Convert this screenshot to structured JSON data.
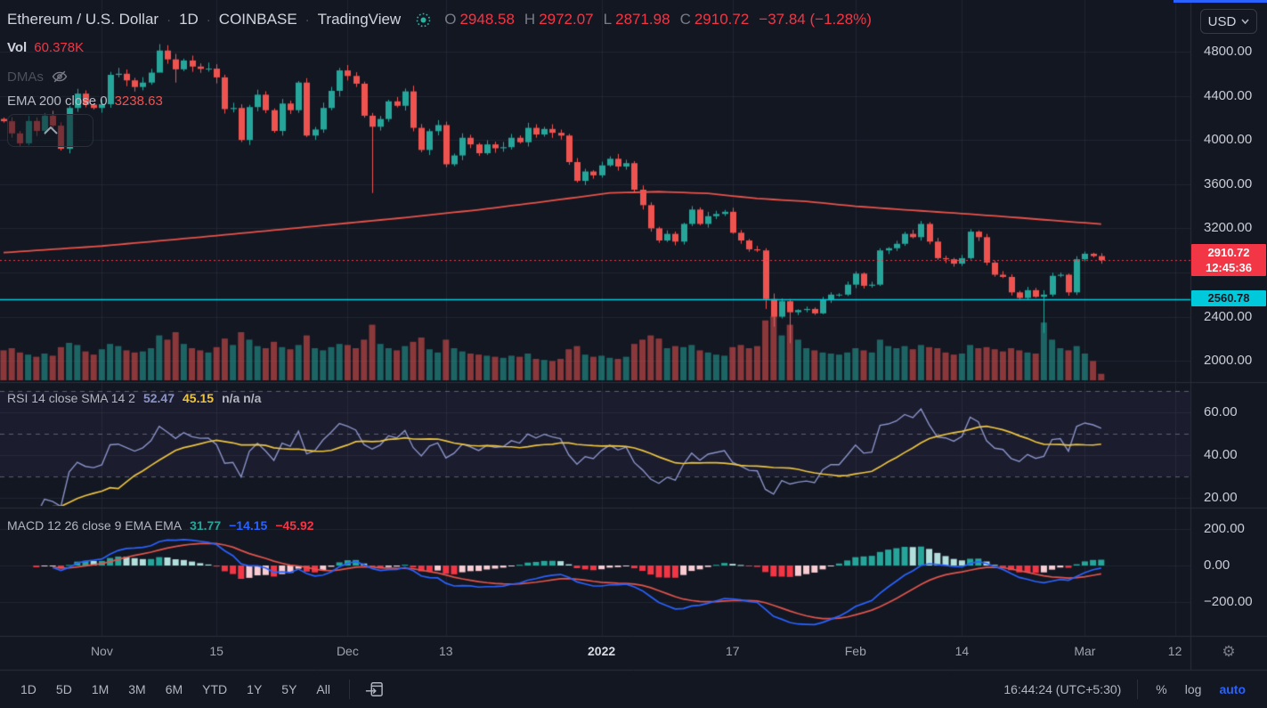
{
  "header": {
    "symbol": "Ethereum / U.S. Dollar",
    "sep": "·",
    "interval": "1D",
    "exchange": "COINBASE",
    "platform": "TradingView",
    "ohlc": {
      "o_label": "O",
      "o": "2948.58",
      "h_label": "H",
      "h": "2972.07",
      "l_label": "L",
      "l": "2871.98",
      "c_label": "C",
      "c": "2910.72",
      "change": "−37.84 (−1.28%)"
    }
  },
  "legend": {
    "vol_label": "Vol",
    "vol_value": "60.378K",
    "dmas_label": "DMAs",
    "ema_label": "EMA 200 close 0",
    "ema_value": "3238.63"
  },
  "rsi_legend": {
    "title": "RSI 14 close SMA 14 2",
    "rsi_value": "52.47",
    "ma_value": "45.15",
    "extra": "n/a n/a"
  },
  "macd_legend": {
    "title": "MACD 12 26 close 9 EMA EMA",
    "hist_value": "31.77",
    "macd_value": "−14.15",
    "signal_value": "−45.92"
  },
  "price_axis": {
    "currency": "USD",
    "last_price": "2910.72",
    "countdown": "12:45:36",
    "alert_price": "2560.78"
  },
  "toolbar": {
    "ranges": [
      "1D",
      "5D",
      "1M",
      "3M",
      "6M",
      "YTD",
      "1Y",
      "5Y",
      "All"
    ],
    "clock": "16:44:24 (UTC+5:30)",
    "percent_label": "%",
    "log_label": "log",
    "auto_label": "auto"
  },
  "colors": {
    "background": "#131722",
    "grid": "rgba(42,46,57,0.6)",
    "separator": "#2A2E39",
    "up": "#26A69A",
    "down": "#EF5350",
    "vol_up": "rgba(38,166,154,0.55)",
    "vol_down": "rgba(239,83,80,0.55)",
    "ema": "#E8524A",
    "last_price_line": "#F23645",
    "alert_line": "#00C9DB",
    "rsi_line": "#8A93C8",
    "rsi_ma": "#ECC440",
    "rsi_band_fill": "rgba(126,87,194,0.08)",
    "rsi_dash": "rgba(150,153,163,0.55)",
    "macd_line": "#2962FF",
    "macd_signal": "#E0544C",
    "hist_up": "#26A69A",
    "hist_up_fade": "#B2DFDB",
    "hist_down": "#F23645",
    "hist_down_fade": "#F8CCD2",
    "accent_blue": "#2962FF"
  },
  "chart_data": {
    "type": "candlestick",
    "title": "Ethereum / U.S. Dollar",
    "interval": "1D",
    "exchange": "COINBASE",
    "panes": [
      "price+volume",
      "RSI",
      "MACD"
    ],
    "price_ylim": [
      1950,
      4950
    ],
    "grid": true,
    "price_grid_values": [
      4800,
      4400,
      4000,
      3600,
      3200,
      2800,
      2400,
      2000
    ],
    "price_labels": [
      [
        4800,
        "4800.00"
      ],
      [
        4400,
        "4400.00"
      ],
      [
        4000,
        "4000.00"
      ],
      [
        3600,
        "3600.00"
      ],
      [
        3200,
        "3200.00"
      ],
      [
        2400,
        "2400.00"
      ],
      [
        2000,
        "2000.00"
      ]
    ],
    "last_price": 2910.72,
    "alert_price": 2560.78,
    "ohlc_current": {
      "open": 2948.58,
      "high": 2972.07,
      "low": 2871.98,
      "close": 2910.72,
      "change": -37.84,
      "change_pct": -1.28
    },
    "volume_current_k": 60.378,
    "ema200_current": 3238.63,
    "closes": [
      4170,
      4060,
      3970,
      4172,
      4082,
      4220,
      4130,
      3920,
      4290,
      4420,
      4320,
      4290,
      4324,
      4590,
      4600,
      4540,
      4480,
      4520,
      4610,
      4810,
      4730,
      4640,
      4720,
      4665,
      4644,
      4646,
      4567,
      4280,
      4290,
      4000,
      4298,
      4410,
      4270,
      4082,
      4330,
      4270,
      4520,
      4040,
      4095,
      4290,
      4445,
      4630,
      4580,
      4510,
      4220,
      4120,
      4190,
      4350,
      4310,
      4440,
      4110,
      3910,
      4080,
      4135,
      3780,
      3860,
      4020,
      3960,
      3880,
      3960,
      3925,
      3935,
      4020,
      3980,
      4110,
      4050,
      4100,
      4065,
      4040,
      3800,
      3630,
      3715,
      3680,
      3770,
      3830,
      3760,
      3790,
      3550,
      3410,
      3200,
      3090,
      3150,
      3080,
      3240,
      3370,
      3240,
      3310,
      3330,
      3350,
      3160,
      3090,
      3010,
      3000,
      2560,
      2400,
      2540,
      2440,
      2460,
      2470,
      2430,
      2550,
      2600,
      2600,
      2690,
      2790,
      2680,
      2690,
      3000,
      3020,
      3060,
      3150,
      3120,
      3240,
      3080,
      2930,
      2920,
      2880,
      2930,
      3170,
      3120,
      2890,
      2780,
      2760,
      2620,
      2570,
      2640,
      2580,
      2600,
      2770,
      2780,
      2620,
      2920,
      2970,
      2948.58,
      2910.72
    ],
    "volumes_k": [
      280,
      300,
      260,
      240,
      220,
      250,
      230,
      310,
      350,
      330,
      270,
      240,
      290,
      340,
      320,
      280,
      260,
      270,
      300,
      420,
      380,
      450,
      340,
      300,
      280,
      260,
      310,
      390,
      330,
      450,
      380,
      320,
      300,
      360,
      310,
      290,
      330,
      420,
      300,
      280,
      310,
      340,
      330,
      300,
      380,
      520,
      340,
      300,
      280,
      320,
      360,
      400,
      290,
      260,
      380,
      300,
      270,
      250,
      240,
      230,
      220,
      210,
      230,
      220,
      250,
      200,
      190,
      180,
      200,
      290,
      320,
      240,
      220,
      230,
      210,
      200,
      220,
      340,
      380,
      420,
      390,
      300,
      320,
      310,
      330,
      280,
      260,
      240,
      230,
      310,
      330,
      300,
      320,
      560,
      600,
      420,
      520,
      380,
      300,
      280,
      260,
      250,
      240,
      260,
      300,
      280,
      260,
      380,
      320,
      300,
      320,
      290,
      330,
      310,
      300,
      260,
      240,
      250,
      330,
      300,
      310,
      290,
      270,
      300,
      280,
      260,
      250,
      540,
      380,
      300,
      280,
      320,
      250,
      180,
      60.378
    ],
    "wick_overrides": {
      "19": [
        4868,
        4700
      ],
      "21": [
        4780,
        4520
      ],
      "45": [
        4245,
        3520
      ],
      "93": [
        3020,
        2470
      ],
      "94": [
        2610,
        2310
      ],
      "96": [
        2560,
        2160
      ],
      "127": [
        2640,
        2253
      ]
    },
    "ema200_anchors": [
      [
        0,
        2980
      ],
      [
        12,
        3040
      ],
      [
        24,
        3120
      ],
      [
        36,
        3205
      ],
      [
        48,
        3290
      ],
      [
        58,
        3368
      ],
      [
        66,
        3442
      ],
      [
        74,
        3520
      ],
      [
        80,
        3532
      ],
      [
        86,
        3516
      ],
      [
        92,
        3470
      ],
      [
        98,
        3444
      ],
      [
        104,
        3400
      ],
      [
        110,
        3368
      ],
      [
        117,
        3334
      ],
      [
        124,
        3296
      ],
      [
        129,
        3266
      ],
      [
        134,
        3239
      ]
    ],
    "time_ticks": [
      [
        "Nov",
        12
      ],
      [
        "15",
        26
      ],
      [
        "Dec",
        42
      ],
      [
        "13",
        54
      ],
      [
        "2022",
        73
      ],
      [
        "17",
        89
      ],
      [
        "Feb",
        104
      ],
      [
        "14",
        117
      ],
      [
        "Mar",
        132
      ],
      [
        "12",
        143
      ]
    ],
    "rsi": {
      "period": 14,
      "ma_period": 14,
      "bands": [
        70,
        50,
        30
      ],
      "axis_labels": [
        [
          60,
          "60.00"
        ],
        [
          40,
          "40.00"
        ],
        [
          20,
          "20.00"
        ]
      ],
      "current": 52.47,
      "ma_current": 45.15
    },
    "macd": {
      "fast": 12,
      "slow": 26,
      "signal": 9,
      "axis_labels": [
        [
          200,
          "200.00"
        ],
        [
          0,
          "0.00"
        ],
        [
          -200,
          "−200.00"
        ]
      ],
      "hist_current": 31.77,
      "macd_current": -14.15,
      "signal_current": -45.92
    }
  }
}
